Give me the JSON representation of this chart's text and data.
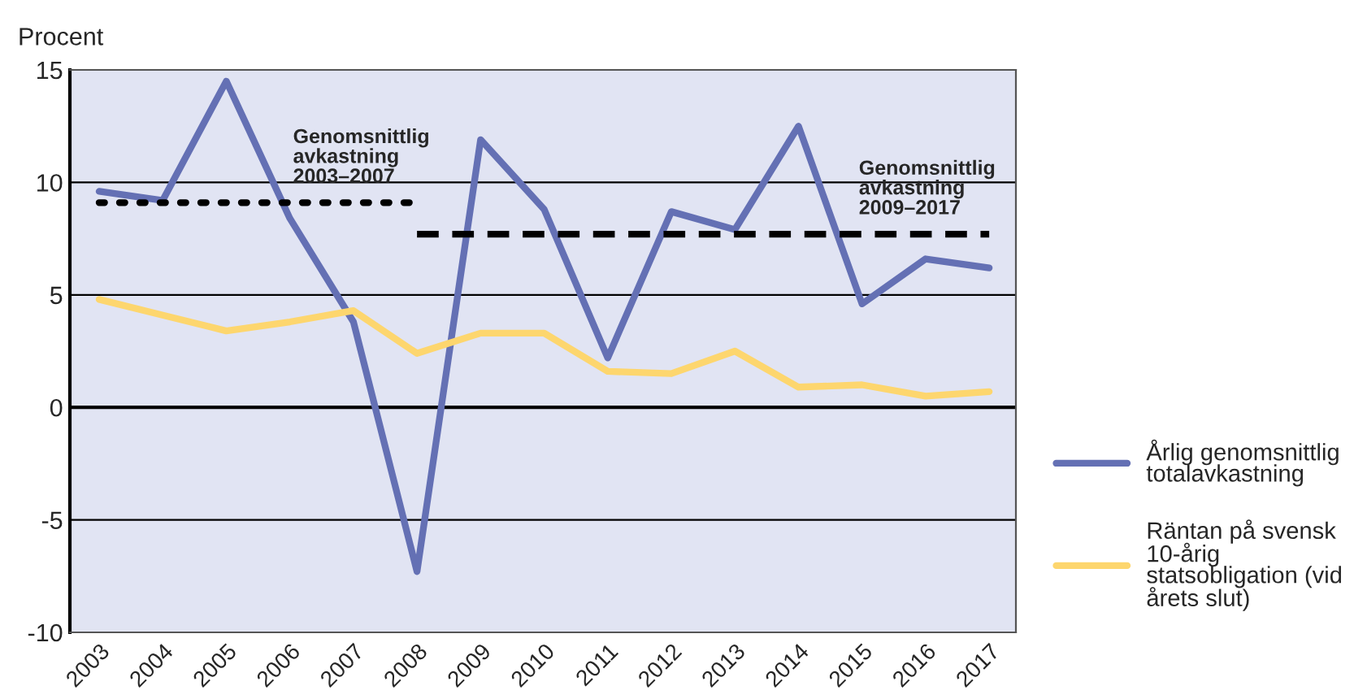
{
  "chart_data": {
    "type": "line",
    "ylabel": "Procent",
    "x": [
      2003,
      2004,
      2005,
      2006,
      2007,
      2008,
      2009,
      2010,
      2011,
      2012,
      2013,
      2014,
      2015,
      2016,
      2017
    ],
    "series": [
      {
        "name": "Årlig genomsnittlig totalavkastning",
        "color": "#6470b4",
        "values": [
          9.6,
          9.2,
          14.5,
          8.4,
          3.8,
          -7.3,
          11.9,
          8.8,
          2.2,
          8.7,
          7.9,
          12.5,
          4.6,
          6.6,
          6.2
        ]
      },
      {
        "name": "Räntan på svensk 10-årig statsobligation (vid årets slut)",
        "color": "#fdd66e",
        "values": [
          4.8,
          4.1,
          3.4,
          3.8,
          4.3,
          2.4,
          3.3,
          3.3,
          1.6,
          1.5,
          2.5,
          0.9,
          1.0,
          0.5,
          0.7
        ]
      },
      {
        "type": "line",
        "x": [
          2003,
          2008
        ],
        "values": [
          9.1,
          9.1
        ],
        "color": "#000000",
        "line_style": "dotted"
      },
      {
        "type": "line",
        "x": [
          2008,
          2017
        ],
        "values": [
          7.7,
          7.7
        ],
        "color": "#000000",
        "line_style": "dashed"
      }
    ],
    "annotations": [
      {
        "text": "Genomsnittlig\navkastning\n2003–2007",
        "x": 2006.05,
        "y": 9.1
      },
      {
        "text": "Genomsnittlig\navkastning\n2009–2017",
        "x": 2014.95,
        "y": 7.7
      }
    ],
    "ref_lines": [
      {
        "axis": "y",
        "value": 0,
        "color": "#000000"
      }
    ],
    "xlim": [
      2002.54,
      2017.42
    ],
    "xticks": [
      2003,
      2004,
      2005,
      2006,
      2007,
      2008,
      2009,
      2010,
      2011,
      2012,
      2013,
      2014,
      2015,
      2016,
      2017
    ],
    "ylim": [
      -10,
      15
    ],
    "yticks": [
      -10,
      -5,
      0,
      5,
      10,
      15
    ],
    "grid": "y",
    "legend": "right"
  }
}
